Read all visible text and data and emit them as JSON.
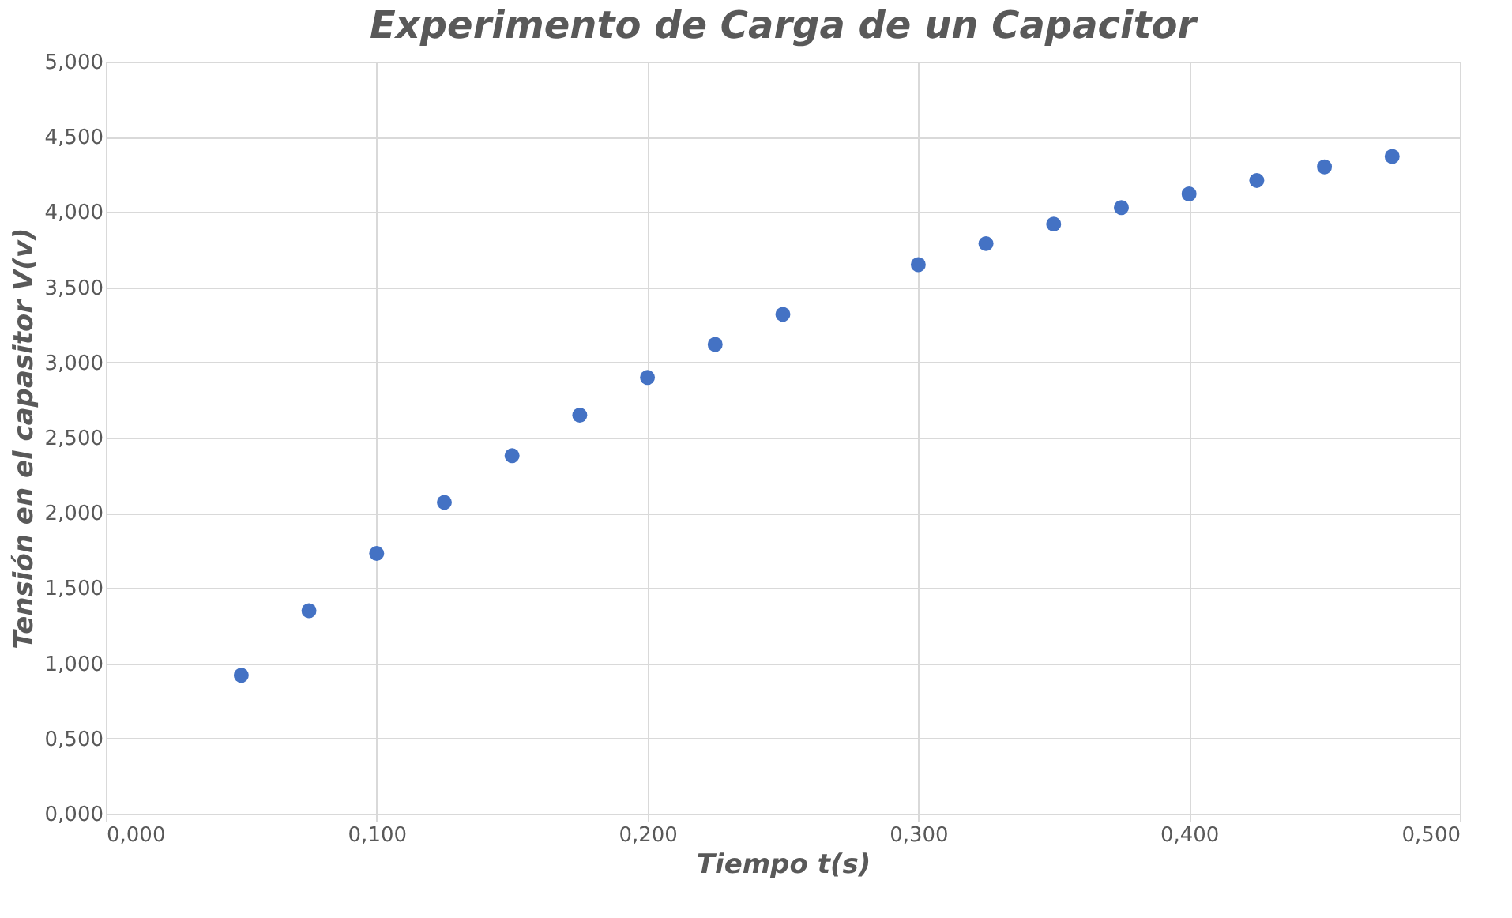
{
  "chart_data": {
    "type": "scatter",
    "title": "Experimento de Carga de un Capacitor",
    "xlabel": "Tiempo t(s)",
    "ylabel": "Tensión en el capasitor V(v)",
    "x": [
      0.05,
      0.075,
      0.1,
      0.125,
      0.15,
      0.175,
      0.2,
      0.225,
      0.25,
      0.3,
      0.325,
      0.35,
      0.375,
      0.4,
      0.425,
      0.45,
      0.475
    ],
    "series": [
      {
        "color": "#4472c4",
        "values": [
          0.92,
          1.35,
          1.73,
          2.07,
          2.38,
          2.65,
          2.9,
          3.12,
          3.32,
          3.65,
          3.79,
          3.92,
          4.03,
          4.12,
          4.21,
          4.3,
          4.37
        ]
      }
    ],
    "xlim": [
      0,
      0.5
    ],
    "ylim": [
      0,
      5
    ],
    "xticks": [
      {
        "value": 0,
        "label": "0,000"
      },
      {
        "value": 0.1,
        "label": "0,100"
      },
      {
        "value": 0.2,
        "label": "0,200"
      },
      {
        "value": 0.3,
        "label": "0,300"
      },
      {
        "value": 0.4,
        "label": "0,400"
      },
      {
        "value": 0.5,
        "label": "0,500"
      }
    ],
    "yticks": [
      {
        "value": 0,
        "label": "0,000"
      },
      {
        "value": 0.5,
        "label": "0,500"
      },
      {
        "value": 1,
        "label": "1,000"
      },
      {
        "value": 1.5,
        "label": "1,500"
      },
      {
        "value": 2,
        "label": "2,000"
      },
      {
        "value": 2.5,
        "label": "2,500"
      },
      {
        "value": 3,
        "label": "3,000"
      },
      {
        "value": 3.5,
        "label": "3,500"
      },
      {
        "value": 4,
        "label": "4,000"
      },
      {
        "value": 4.5,
        "label": "4,500"
      },
      {
        "value": 5,
        "label": "5,000"
      }
    ],
    "grid": true,
    "marker": "circle"
  }
}
